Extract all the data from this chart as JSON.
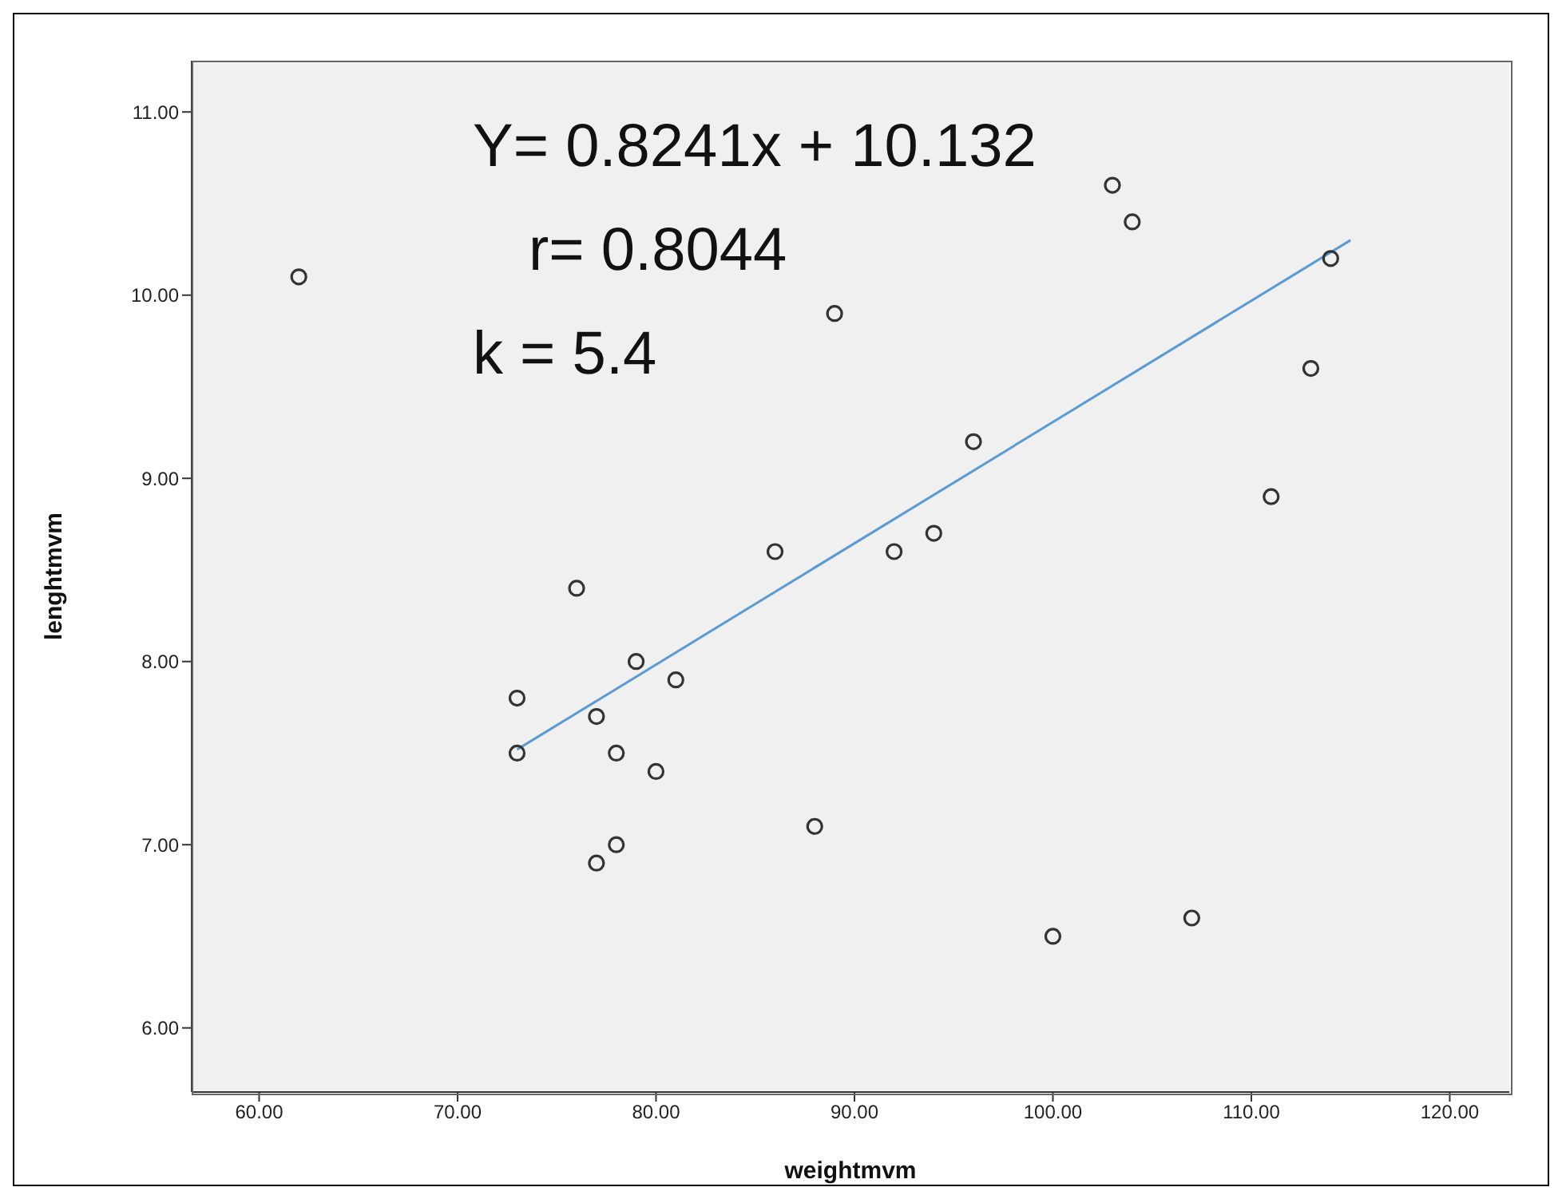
{
  "chart_data": {
    "type": "scatter",
    "xlabel": "weightmvm",
    "ylabel": "lenghtmvm",
    "marker": "circle",
    "grid": false,
    "annotations": [
      "Y= 0.8241x + 10.132",
      "r= 0.8044",
      "k = 5.4"
    ],
    "xlim": [
      56.6,
      123
    ],
    "ylim": [
      5.65,
      11.28
    ],
    "xticks": [
      {
        "value": 60,
        "label": "60.00"
      },
      {
        "value": 70,
        "label": "70.00"
      },
      {
        "value": 80,
        "label": "80.00"
      },
      {
        "value": 90,
        "label": "90.00"
      },
      {
        "value": 100,
        "label": "100.00"
      },
      {
        "value": 110,
        "label": "110.00"
      },
      {
        "value": 120,
        "label": "120.00"
      }
    ],
    "yticks": [
      {
        "value": 6,
        "label": "6.00"
      },
      {
        "value": 7,
        "label": "7.00"
      },
      {
        "value": 8,
        "label": "8.00"
      },
      {
        "value": 9,
        "label": "9.00"
      },
      {
        "value": 10,
        "label": "10.00"
      },
      {
        "value": 11,
        "label": "11.00"
      }
    ],
    "series": [
      {
        "color": "#333333",
        "x": [
          62,
          73,
          73,
          76,
          77,
          77,
          78,
          78,
          79,
          80,
          81,
          86,
          88,
          89,
          92,
          94,
          96,
          100,
          103,
          104,
          107,
          111,
          113,
          114
        ],
        "values": [
          10.1,
          7.8,
          7.5,
          8.4,
          7.7,
          6.9,
          7.5,
          7.0,
          8.0,
          7.4,
          7.9,
          8.6,
          7.1,
          9.9,
          8.6,
          8.7,
          9.2,
          6.5,
          10.6,
          10.4,
          6.6,
          8.9,
          9.6,
          10.2
        ]
      },
      {
        "type": "line",
        "marker": "none",
        "color": "#5b9bd5",
        "x": [
          73,
          115
        ],
        "values": [
          7.52,
          10.3
        ]
      }
    ]
  }
}
